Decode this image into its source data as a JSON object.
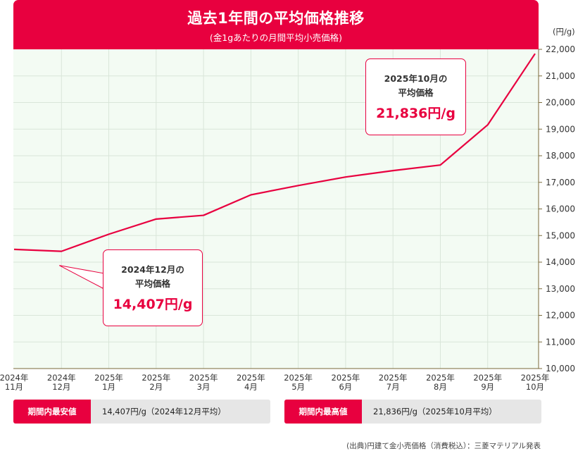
{
  "header": {
    "title": "過去1年間の平均価格推移",
    "subtitle": "(金1gあたりの月間平均小売価格)"
  },
  "colors": {
    "accent": "#e8003f",
    "plot_bg": "#f3fbf3",
    "grid": "#d9e6d9",
    "axis": "#7a6a3a"
  },
  "chart_data": {
    "type": "line",
    "title": "過去1年間の平均価格推移",
    "subtitle": "(金1gあたりの月間平均小売価格)",
    "ylabel": "(円/g)",
    "ylim": [
      10000,
      22000
    ],
    "yticks": [
      "10,000",
      "11,000",
      "12,000",
      "13,000",
      "14,000",
      "15,000",
      "16,000",
      "17,000",
      "18,000",
      "19,000",
      "20,000",
      "21,000",
      "22,000"
    ],
    "categories": [
      [
        "2024年",
        "11月"
      ],
      [
        "2024年",
        "12月"
      ],
      [
        "2025年",
        "1月"
      ],
      [
        "2025年",
        "2月"
      ],
      [
        "2025年",
        "3月"
      ],
      [
        "2025年",
        "4月"
      ],
      [
        "2025年",
        "5月"
      ],
      [
        "2025年",
        "6月"
      ],
      [
        "2025年",
        "7月"
      ],
      [
        "2025年",
        "8月"
      ],
      [
        "2025年",
        "9月"
      ],
      [
        "2025年",
        "10月"
      ]
    ],
    "series": [
      {
        "values": [
          14480,
          14407,
          15050,
          15620,
          15760,
          16530,
          16880,
          17200,
          17440,
          17650,
          19160,
          21836
        ]
      }
    ],
    "grid": true,
    "legend": "none"
  },
  "callouts": {
    "low": {
      "caption1": "2024年12月の",
      "caption2": "平均価格",
      "value": "14,407円/g"
    },
    "high": {
      "caption1": "2025年10月の",
      "caption2": "平均価格",
      "value": "21,836円/g"
    }
  },
  "summary": {
    "low_label": "期間内最安値",
    "low_value": "14,407円/g（2024年12月平均）",
    "high_label": "期間内最高値",
    "high_value": "21,836円/g（2025年10月平均）"
  },
  "source": "(出典)円建て金小売価格（消費税込）：三菱マテリアル発表"
}
